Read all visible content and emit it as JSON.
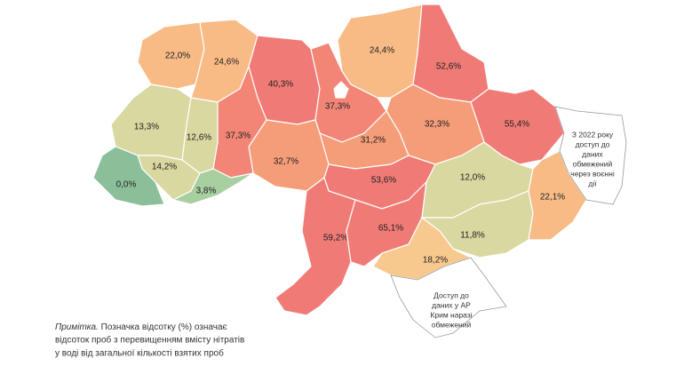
{
  "regions": [
    {
      "label": "22,0%",
      "color": "#f8bb86"
    },
    {
      "label": "24,6%",
      "color": "#f8bb86"
    },
    {
      "label": "40,3%",
      "color": "#f07b76"
    },
    {
      "label": "37,3%",
      "color": "#f28576"
    },
    {
      "label": "24,4%",
      "color": "#f8bb86"
    },
    {
      "label": "52,6%",
      "color": "#f07b76"
    },
    {
      "label": "55,4%",
      "color": "#f07b76"
    },
    {
      "label": "32,3%",
      "color": "#f59d78"
    },
    {
      "label": "31,2%",
      "color": "#f59d78"
    },
    {
      "label": "32,7%",
      "color": "#f59d78"
    },
    {
      "label": "37,3%",
      "color": "#f28576"
    },
    {
      "label": "12,6%",
      "color": "#d9d8a0"
    },
    {
      "label": "13,3%",
      "color": "#d9d8a0"
    },
    {
      "label": "14,2%",
      "color": "#d9d8a0"
    },
    {
      "label": "0,0%",
      "color": "#8bbf9a"
    },
    {
      "label": "3,8%",
      "color": "#a8cf9f"
    },
    {
      "label": "53,6%",
      "color": "#f07b76"
    },
    {
      "label": "59,2%",
      "color": "#f07b76"
    },
    {
      "label": "65,1%",
      "color": "#f07b76"
    },
    {
      "label": "12,0%",
      "color": "#d9d8a0"
    },
    {
      "label": "11,8%",
      "color": "#d9d8a0"
    },
    {
      "label": "18,2%",
      "color": "#f8c98f"
    },
    {
      "label": "22,1%",
      "color": "#f8bb86"
    }
  ],
  "luhansk_note": [
    "З 2022 року",
    "доступ до",
    "даних",
    "обмежений",
    "через воєнні",
    "дії"
  ],
  "crimea_note": [
    "Доступ до",
    "даних у АР",
    "Крим наразі",
    "обмежений"
  ],
  "note": {
    "label": "Примітка.",
    "lines": [
      "Позначка відсотку (%) означає",
      "відсоток проб з перевищенням вмісту нітратів",
      "у воді від загальної кількості взятих проб"
    ]
  }
}
